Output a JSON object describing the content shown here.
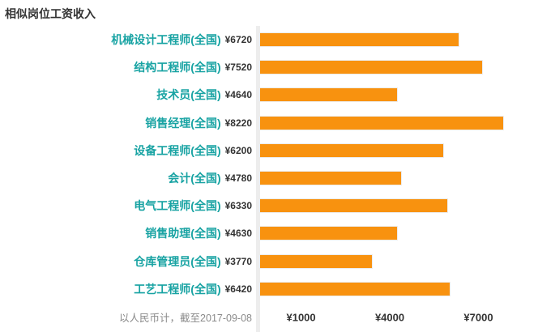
{
  "title": "相似岗位工资收入",
  "colors": {
    "background": "#FFFFFF",
    "bar": "#F8920F",
    "bar_border": "#ECECEC",
    "job_label": "#18A3A3",
    "value_text": "#333333",
    "title_text": "#333333",
    "note_text": "#8A8A8A",
    "divider": "#EDEDED",
    "tick_text": "#333333"
  },
  "chart_data": {
    "type": "bar",
    "orientation": "horizontal",
    "title": "相似岗位工资收入",
    "categories": [
      "机械设计工程师(全国)",
      "结构工程师(全国)",
      "技术员(全国)",
      "销售经理(全国)",
      "设备工程师(全国)",
      "会计(全国)",
      "电气工程师(全国)",
      "销售助理(全国)",
      "仓库管理员(全国)",
      "工艺工程师(全国)"
    ],
    "values": [
      6720,
      7520,
      4640,
      8220,
      6200,
      4780,
      6330,
      4630,
      3770,
      6420
    ],
    "value_labels": [
      "¥6720",
      "¥7520",
      "¥4640",
      "¥8220",
      "¥6200",
      "¥4780",
      "¥6330",
      "¥4630",
      "¥3770",
      "¥6420"
    ],
    "currency": "CNY",
    "note": "以人民币计，截至2017-09-08",
    "xlabel": "",
    "ylabel": "",
    "grid": false,
    "legend": false,
    "axis": {
      "min": 0,
      "max": 9400,
      "ticks": [
        {
          "label": "¥1000",
          "value": 1000
        },
        {
          "label": "¥4000",
          "value": 4000
        },
        {
          "label": "¥7000",
          "value": 7000
        }
      ]
    }
  }
}
